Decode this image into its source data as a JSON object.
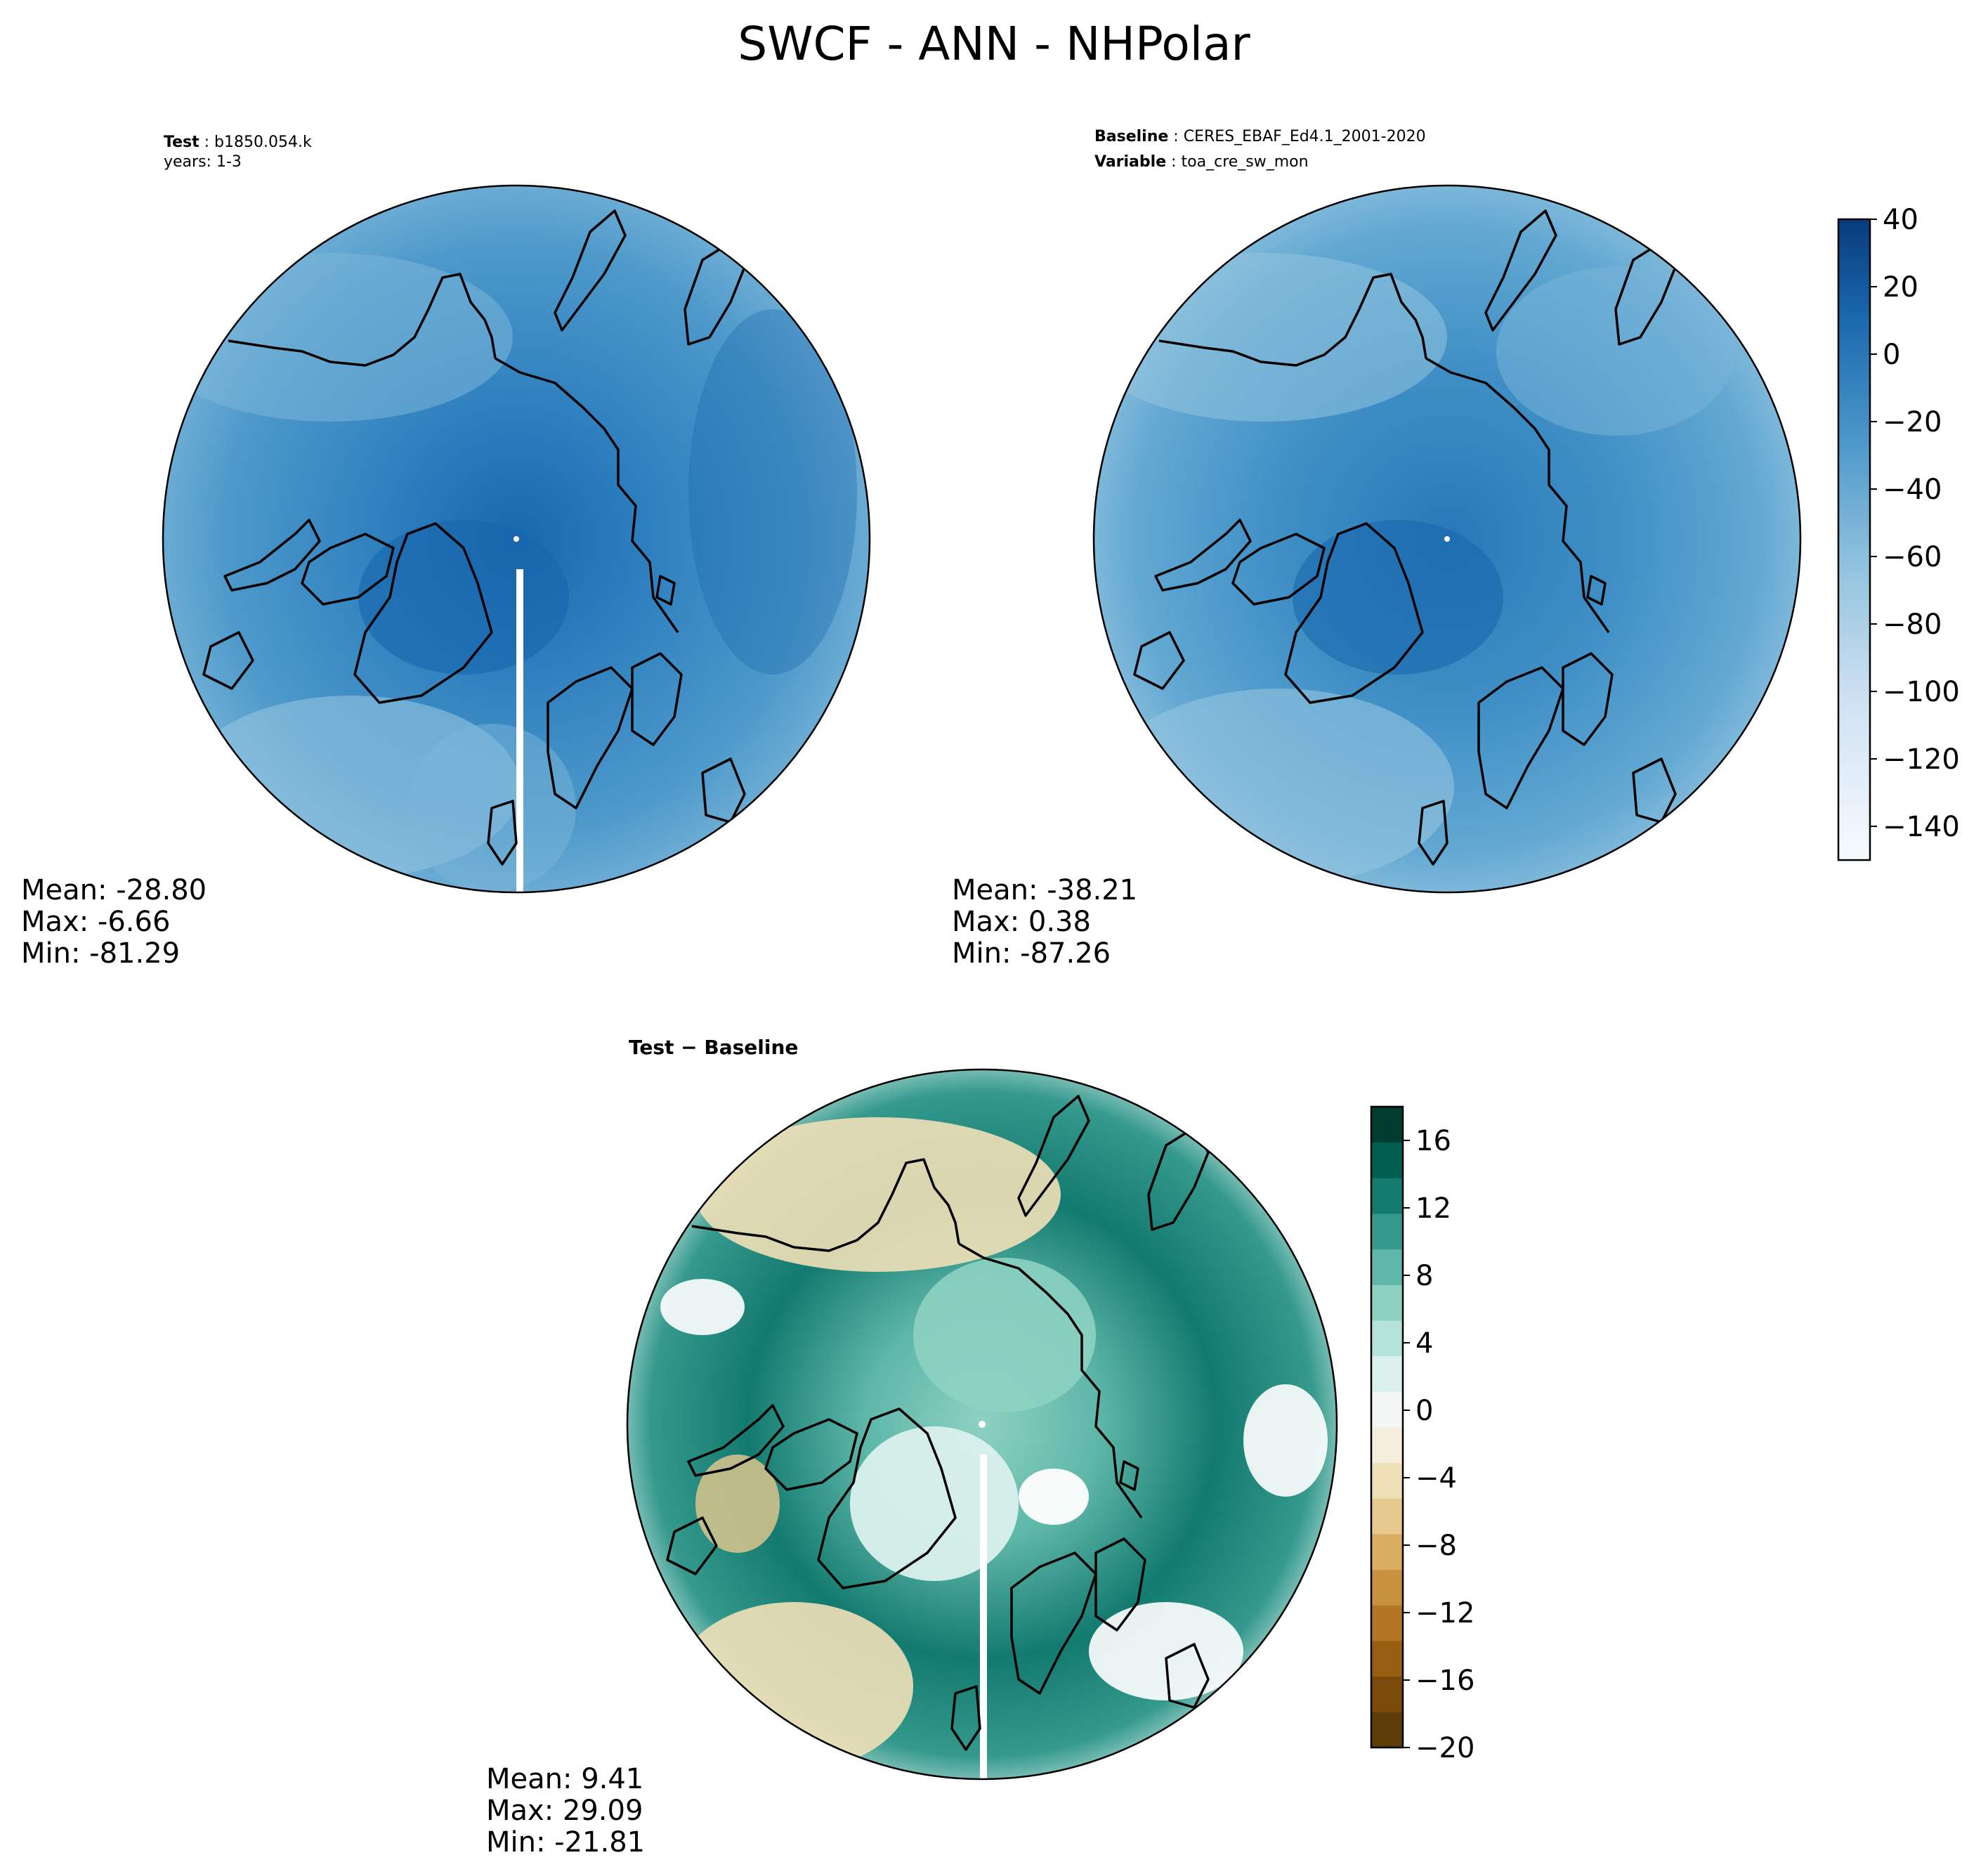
{
  "title": "SWCF - ANN - NHPolar",
  "colors": {
    "test_panel": "#3b86c2",
    "baseline_panel": "#3b86c2",
    "diff_panel": "#8fd0c3",
    "coastline": "#000000"
  },
  "chart_data": [
    {
      "type": "heatmap",
      "projection": "north-polar-stereographic",
      "panel": "test",
      "header": {
        "label": "Test",
        "value": "b1850.054.k",
        "line2": "years: 1-3"
      },
      "stats": {
        "mean_label": "Mean:",
        "mean": "-28.80",
        "max_label": "Max:",
        "max": "-6.66",
        "min_label": "Min:",
        "min": "-81.29"
      },
      "colorbar": "blues"
    },
    {
      "type": "heatmap",
      "projection": "north-polar-stereographic",
      "panel": "baseline",
      "header": {
        "label": "Baseline",
        "value": "CERES_EBAF_Ed4.1_2001-2020",
        "label2": "Variable",
        "value2": "toa_cre_sw_mon"
      },
      "stats": {
        "mean_label": "Mean:",
        "mean": "-38.21",
        "max_label": "Max:",
        "max": " 0.38",
        "min_label": "Min:",
        "min": "-87.26"
      },
      "colorbar": {
        "name": "blues",
        "range": [
          -150,
          40
        ],
        "ticks": [
          40,
          20,
          0,
          -20,
          -40,
          -60,
          -80,
          -100,
          -120,
          -140
        ],
        "tick_labels": [
          "40",
          "20",
          "0",
          "−20",
          "−40",
          "−60",
          "−80",
          "−100",
          "−120",
          "−140"
        ],
        "colors": [
          "#f7fbff",
          "#e8f1fa",
          "#dbe9f6",
          "#cfe1f2",
          "#bfd8ed",
          "#aacfe5",
          "#94c4df",
          "#7bb6d9",
          "#62a8d2",
          "#4d99ca",
          "#3989c1",
          "#2878b8",
          "#1967ad",
          "#0d58a1",
          "#084891",
          "#083b7c"
        ]
      }
    },
    {
      "type": "heatmap",
      "projection": "north-polar-stereographic",
      "panel": "difference",
      "header": {
        "label": "Test − Baseline"
      },
      "stats": {
        "mean_label": "Mean:",
        "mean": " 9.41",
        "max_label": "Max:",
        "max": "29.09",
        "min_label": "Min:",
        "min": "-21.81"
      },
      "colorbar": {
        "name": "BrBG",
        "range": [
          -20,
          18
        ],
        "ticks": [
          16,
          12,
          8,
          4,
          0,
          -4,
          -8,
          -12,
          -16,
          -20
        ],
        "tick_labels": [
          "16",
          "12",
          "8",
          "4",
          "0",
          "−4",
          "−8",
          "−12",
          "−16",
          "−20"
        ],
        "colors": [
          "#5e3c07",
          "#7a4a0a",
          "#965e10",
          "#b37625",
          "#c8913e",
          "#d9ad62",
          "#e6c98c",
          "#f0e0b7",
          "#f5eedc",
          "#f2f6f4",
          "#daf0ec",
          "#b5e2d9",
          "#8dd1c1",
          "#5eb7a9",
          "#35998d",
          "#137a6f",
          "#015f52",
          "#003c30"
        ]
      }
    }
  ]
}
